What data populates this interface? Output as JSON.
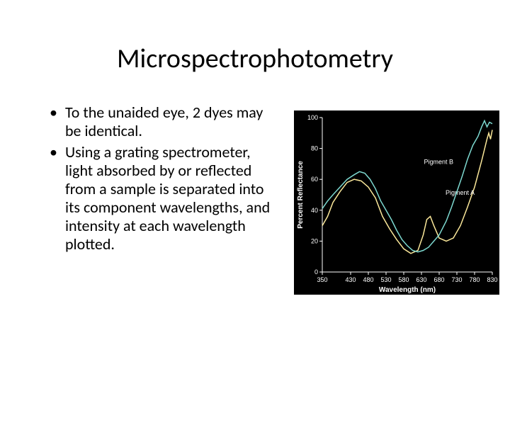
{
  "title": "Microspectrophotometry",
  "bullets": [
    "To the unaided eye, 2 dyes may be identical.",
    "Using a grating spectrometer, light absorbed by or reflected from a sample is separated into its component wavelengths, and intensity at each wavelength plotted."
  ],
  "chart": {
    "type": "line",
    "background_color": "#000000",
    "grid_color": "#1a1a1a",
    "axis_color": "#ffffff",
    "xlabel": "Wavelength (nm)",
    "ylabel": "Percent Reflectance",
    "label_fontsize": 10,
    "tick_fontsize": 9,
    "xlim": [
      350,
      830
    ],
    "ylim": [
      0,
      100
    ],
    "xtick_step": 50,
    "ytick_step": 20,
    "xticks": [
      350,
      430,
      480,
      530,
      580,
      630,
      680,
      730,
      780,
      830
    ],
    "yticks": [
      0,
      20,
      40,
      60,
      80,
      100
    ],
    "line_width": 1.5,
    "series": [
      {
        "name": "Pigment A",
        "color": "#fbe89a",
        "label_x": 780,
        "label_y": 50,
        "points": [
          [
            350,
            30
          ],
          [
            365,
            36
          ],
          [
            380,
            45
          ],
          [
            400,
            52
          ],
          [
            420,
            58
          ],
          [
            440,
            60
          ],
          [
            460,
            59
          ],
          [
            480,
            55
          ],
          [
            500,
            48
          ],
          [
            520,
            36
          ],
          [
            540,
            28
          ],
          [
            560,
            21
          ],
          [
            580,
            15
          ],
          [
            600,
            12
          ],
          [
            620,
            14
          ],
          [
            635,
            24
          ],
          [
            645,
            34
          ],
          [
            655,
            36
          ],
          [
            665,
            30
          ],
          [
            680,
            22
          ],
          [
            700,
            20
          ],
          [
            720,
            22
          ],
          [
            740,
            30
          ],
          [
            760,
            42
          ],
          [
            780,
            55
          ],
          [
            800,
            72
          ],
          [
            815,
            86
          ],
          [
            820,
            90
          ],
          [
            825,
            86
          ],
          [
            830,
            92
          ]
        ]
      },
      {
        "name": "Pigment B",
        "color": "#7dd9d0",
        "label_x": 720,
        "label_y": 70,
        "points": [
          [
            350,
            41
          ],
          [
            365,
            46
          ],
          [
            380,
            50
          ],
          [
            400,
            55
          ],
          [
            420,
            60
          ],
          [
            440,
            63
          ],
          [
            455,
            65
          ],
          [
            470,
            64
          ],
          [
            485,
            60
          ],
          [
            500,
            54
          ],
          [
            515,
            46
          ],
          [
            530,
            40
          ],
          [
            545,
            34
          ],
          [
            560,
            27
          ],
          [
            575,
            21
          ],
          [
            590,
            17
          ],
          [
            605,
            14
          ],
          [
            620,
            13
          ],
          [
            635,
            14
          ],
          [
            650,
            16
          ],
          [
            665,
            20
          ],
          [
            680,
            24
          ],
          [
            700,
            33
          ],
          [
            715,
            42
          ],
          [
            730,
            52
          ],
          [
            745,
            62
          ],
          [
            760,
            73
          ],
          [
            775,
            82
          ],
          [
            790,
            88
          ],
          [
            800,
            94
          ],
          [
            808,
            98
          ],
          [
            815,
            94
          ],
          [
            822,
            97
          ],
          [
            830,
            96
          ]
        ]
      }
    ]
  }
}
